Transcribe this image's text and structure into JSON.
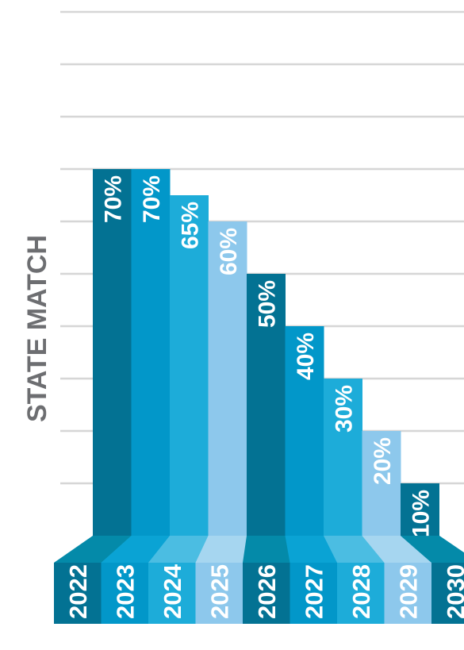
{
  "chart_data": {
    "type": "bar",
    "ylabel": "STATE MATCH",
    "xlabel": "",
    "title": "",
    "categories": [
      "2022",
      "2023",
      "2024",
      "2025",
      "2026",
      "2027",
      "2028",
      "2029",
      "2030"
    ],
    "series": [
      {
        "values": [
          70,
          70,
          65,
          60,
          50,
          40,
          30,
          20,
          10
        ]
      }
    ],
    "value_labels": [
      "70%",
      "70%",
      "65%",
      "60%",
      "50%",
      "40%",
      "30%",
      "20%",
      "10%"
    ],
    "ylim": [
      0,
      100
    ],
    "grid": true,
    "legend": "none",
    "colors": {
      "bars": [
        "#037293",
        "#0297c9",
        "#1dacd9",
        "#8dc8ec",
        "#037293",
        "#0297c9",
        "#1dacd9",
        "#8dc8ec",
        "#037293"
      ],
      "base_top": [
        "#048aa9",
        "#0aa3d4",
        "#4bbde2",
        "#a6d6f0",
        "#048aa9",
        "#0aa3d4",
        "#4bbde2",
        "#a6d6f0",
        "#048aa9"
      ],
      "gridline": "#d6d6d6",
      "ylabel": "#6d6e71",
      "text": "#ffffff"
    }
  }
}
